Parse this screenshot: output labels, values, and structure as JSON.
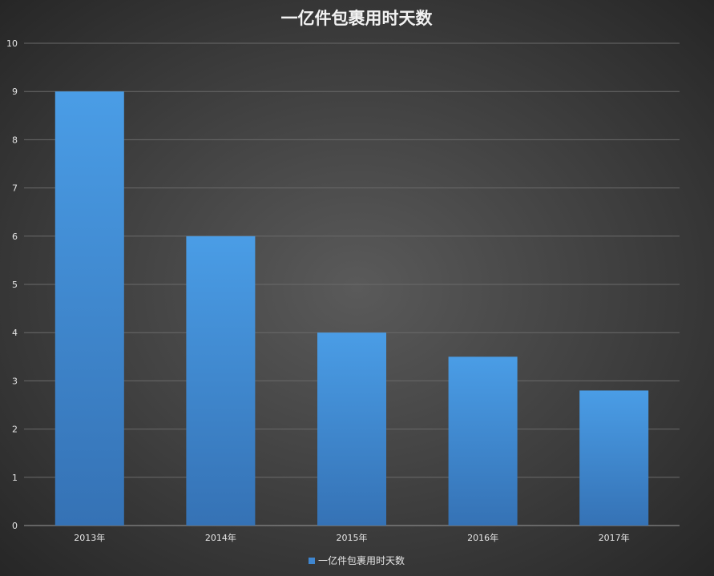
{
  "chart_data": {
    "type": "bar",
    "title": "一亿件包裹用时天数",
    "xlabel": "",
    "ylabel": "",
    "categories": [
      "2013年",
      "2014年",
      "2015年",
      "2016年",
      "2017年"
    ],
    "series": [
      {
        "name": "一亿件包裹用时天数",
        "values": [
          9,
          6,
          4,
          3.5,
          2.8
        ]
      }
    ],
    "ylim": [
      0,
      10
    ],
    "yticks": [
      "0",
      "1",
      "2",
      "3",
      "4",
      "5",
      "6",
      "7",
      "8",
      "9",
      "10"
    ],
    "grid": true,
    "legend_position": "bottom",
    "colors": {
      "bar_top": "#4a9de6",
      "bar_bottom": "#3572b5",
      "gridline": "#6a6a6a",
      "axis": "#9a9a9a",
      "legend_marker": "#3f86d0"
    }
  }
}
